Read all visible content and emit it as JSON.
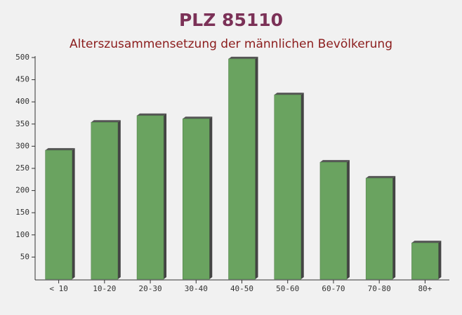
{
  "chart_data": {
    "type": "bar",
    "title": "PLZ 85110",
    "subtitle": "Alterszusammensetzung der männlichen Bevölkerung",
    "categories": [
      "< 10",
      "10-20",
      "20-30",
      "30-40",
      "40-50",
      "50-60",
      "60-70",
      "70-80",
      "80+"
    ],
    "values": [
      291,
      354,
      369,
      362,
      497,
      416,
      264,
      228,
      82
    ],
    "color": "#6aa360",
    "ylim": [
      0,
      500
    ],
    "yticks": [
      50,
      100,
      150,
      200,
      250,
      300,
      350,
      400,
      450,
      500
    ],
    "grid": false
  }
}
